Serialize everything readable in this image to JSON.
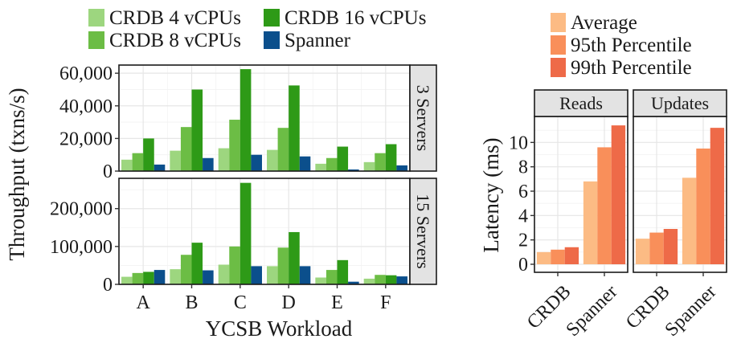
{
  "chart_data": [
    {
      "type": "bar",
      "id": "throughput",
      "categories": [
        "A",
        "B",
        "C",
        "D",
        "E",
        "F"
      ],
      "xlabel": "YCSB Workload",
      "ylabel": "Throughput (txns/s)",
      "legend_position": "top",
      "grid": true,
      "series": [
        {
          "name": "CRDB 4 vCPUs",
          "color": "#9dd67f"
        },
        {
          "name": "CRDB 8 vCPUs",
          "color": "#6cbd45"
        },
        {
          "name": "CRDB 16 vCPUs",
          "color": "#2e9a17"
        },
        {
          "name": "Spanner",
          "color": "#0b4f8c"
        }
      ],
      "facets": [
        {
          "label": "3 Servers",
          "ylim": [
            0,
            65000
          ],
          "yticks": [
            0,
            20000,
            40000,
            60000
          ],
          "ytick_labels": [
            "0",
            "20,000",
            "40,000",
            "60,000"
          ],
          "values": [
            [
              7000,
              12500,
              14000,
              13000,
              4500,
              5500
            ],
            [
              11000,
              27000,
              31500,
              26500,
              8000,
              11000
            ],
            [
              20000,
              50000,
              62500,
              52500,
              15000,
              16500
            ],
            [
              4000,
              8000,
              10000,
              9000,
              1000,
              3500
            ]
          ]
        },
        {
          "label": "15 Servers",
          "ylim": [
            0,
            280000
          ],
          "yticks": [
            0,
            100000,
            200000
          ],
          "ytick_labels": [
            "0",
            "100,000",
            "200,000"
          ],
          "values": [
            [
              20000,
              40000,
              52000,
              48000,
              18000,
              15000
            ],
            [
              30000,
              78000,
              100000,
              97000,
              38000,
              25000
            ],
            [
              33000,
              110000,
              268000,
              138000,
              64000,
              24000
            ],
            [
              38000,
              37000,
              48000,
              48000,
              7000,
              21000
            ]
          ]
        }
      ]
    },
    {
      "type": "bar",
      "id": "latency",
      "categories": [
        "CRDB",
        "Spanner"
      ],
      "ylabel": "Latency (ms)",
      "ylim": [
        0,
        12
      ],
      "yticks": [
        0,
        2,
        4,
        6,
        8,
        10
      ],
      "ytick_labels": [
        "0",
        "2",
        "4",
        "6",
        "8",
        "10"
      ],
      "legend_position": "top",
      "grid": true,
      "series": [
        {
          "name": "Average",
          "color": "#fcbb84"
        },
        {
          "name": "95th Percentile",
          "color": "#f98f5a"
        },
        {
          "name": "99th Percentile",
          "color": "#ee6a48"
        }
      ],
      "facets": [
        {
          "label": "Reads",
          "values": [
            [
              1.0,
              6.8
            ],
            [
              1.2,
              9.6
            ],
            [
              1.4,
              11.4
            ]
          ]
        },
        {
          "label": "Updates",
          "values": [
            [
              2.1,
              7.1
            ],
            [
              2.6,
              9.5
            ],
            [
              2.9,
              11.2
            ]
          ]
        }
      ]
    }
  ]
}
